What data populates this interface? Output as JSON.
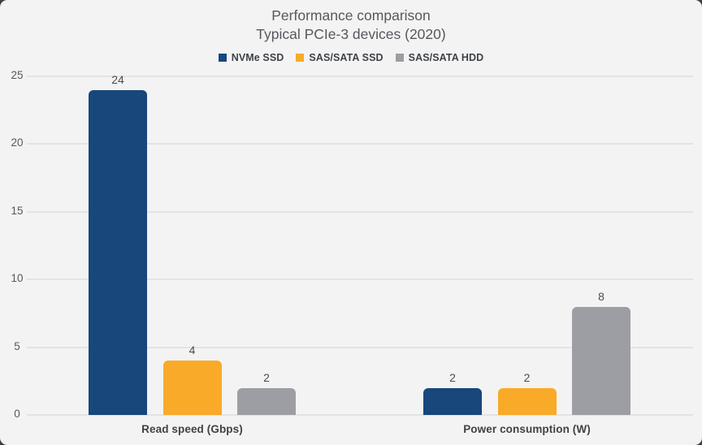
{
  "window": {
    "backdrop_color": "#3c3f44",
    "card_background": "#f3f3f3",
    "gridline_color": "#e3e3e3"
  },
  "chart_data": {
    "type": "bar",
    "title": "Performance comparison",
    "subtitle": "Typical PCIe-3 devices (2020)",
    "categories": [
      "Read speed (Gbps)",
      "Power consumption (W)"
    ],
    "series": [
      {
        "name": "NVMe SSD",
        "color": "#17477b",
        "values": [
          24,
          2
        ]
      },
      {
        "name": "SAS/SATA SSD",
        "color": "#f9aa28",
        "values": [
          4,
          2
        ]
      },
      {
        "name": "SAS/SATA HDD",
        "color": "#9c9ea3",
        "values": [
          2,
          8
        ]
      }
    ],
    "ylim": [
      0,
      25
    ],
    "yticks": [
      0,
      5,
      10,
      15,
      20,
      25
    ],
    "grid": true,
    "legend_position": "top-center",
    "value_labels": true
  }
}
